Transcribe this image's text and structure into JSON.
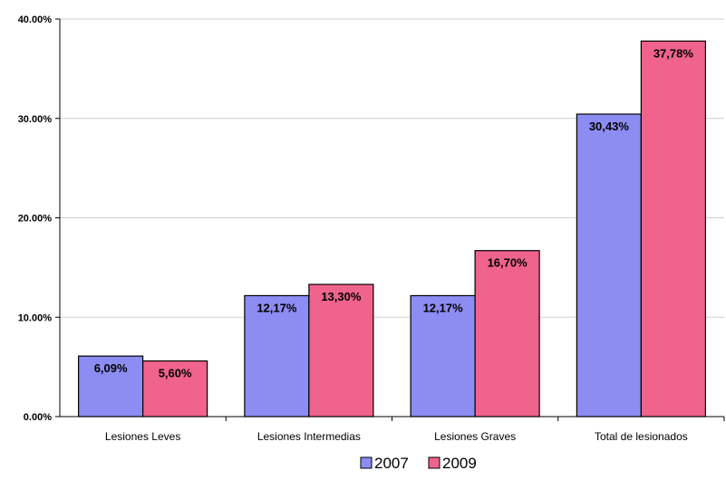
{
  "chart_data": {
    "type": "bar",
    "title": "",
    "xlabel": "",
    "ylabel": "",
    "ylim": [
      0,
      40
    ],
    "yticks": [
      "0.00%",
      "10.00%",
      "20.00%",
      "30.00%",
      "40.00%"
    ],
    "grid": true,
    "legend_position": "bottom",
    "categories": [
      "Lesiones Leves",
      "Lesiones Intermedias",
      "Lesiones Graves",
      "Total de lesionados"
    ],
    "series": [
      {
        "name": "2007",
        "color": "#8c8cf2",
        "values": [
          6.09,
          12.17,
          12.17,
          30.43
        ],
        "labels": [
          "6,09%",
          "12,17%",
          "12,17%",
          "30,43%"
        ]
      },
      {
        "name": "2009",
        "color": "#f0638c",
        "values": [
          5.6,
          13.3,
          16.7,
          37.78
        ],
        "labels": [
          "5,60%",
          "13,30%",
          "16,70%",
          "37,78%"
        ]
      }
    ]
  }
}
